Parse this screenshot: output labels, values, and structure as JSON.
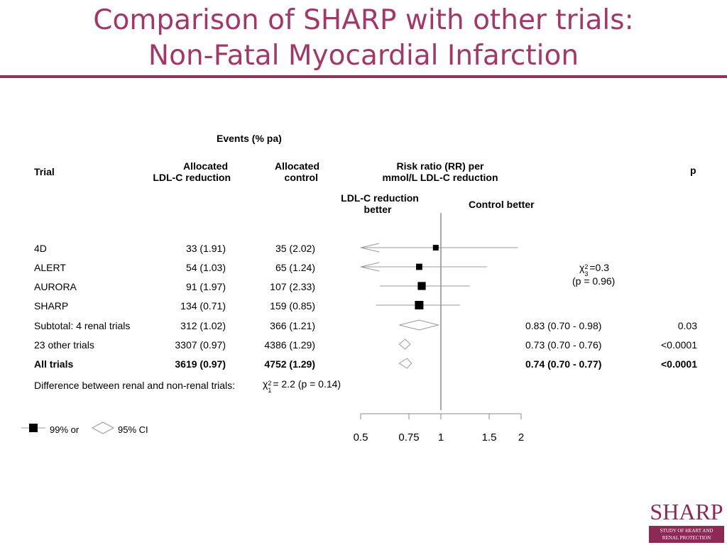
{
  "title": {
    "line1": "Comparison of SHARP with other trials:",
    "line2": "Non-Fatal Myocardial Infarction"
  },
  "headers": {
    "events": "Events (% pa)",
    "trial": "Trial",
    "allocated_ldl_1": "Allocated",
    "allocated_ldl_2": "LDL-C reduction",
    "allocated_ctrl_1": "Allocated",
    "allocated_ctrl_2": "control",
    "rr_1": "Risk ratio (RR) per",
    "rr_2": "mmol/L LDL-C reduction",
    "p": "p",
    "ldl_better_1": "LDL-C reduction",
    "ldl_better_2": "better",
    "control_better": "Control better"
  },
  "heterogeneity": {
    "chi": "χ",
    "sup": "2",
    "sub": "3",
    "value": "=0.3",
    "p": "(p = 0.96)"
  },
  "difference": {
    "label": "Difference between renal and non-renal trials:",
    "chi": "χ",
    "sup": "2",
    "sub": "1",
    "value": "= 2.2 (p = 0.14)"
  },
  "legend": {
    "square": "99% or",
    "diamond": "95% CI"
  },
  "logo": {
    "word": "SHARP",
    "sub1": "STUDY OF HEART AND",
    "sub2": "RENAL PROTECTION"
  },
  "chart_data": {
    "type": "forest",
    "x_ticks": [
      "0.5",
      "0.75",
      "1",
      "1.5",
      "2"
    ],
    "xlim": [
      0.5,
      2
    ],
    "reference": 1,
    "rows": [
      {
        "trial": "4D",
        "ldl": "33 (1.91)",
        "ctrl": "35 (2.02)",
        "rr": 0.96,
        "lo": 0.38,
        "hi": 1.95,
        "arrow_left": true,
        "marker": "square",
        "size": 0.25,
        "estimate": "",
        "p": "",
        "bold": false
      },
      {
        "trial": "ALERT",
        "ldl": "54 (1.03)",
        "ctrl": "65 (1.24)",
        "rr": 0.83,
        "lo": 0.38,
        "hi": 1.48,
        "arrow_left": true,
        "marker": "square",
        "size": 0.35,
        "estimate": "",
        "p": "",
        "bold": false
      },
      {
        "trial": "AURORA",
        "ldl": "91 (1.97)",
        "ctrl": "107 (2.33)",
        "rr": 0.85,
        "lo": 0.6,
        "hi": 1.3,
        "arrow_left": false,
        "marker": "square",
        "size": 0.65,
        "estimate": "",
        "p": "",
        "bold": false
      },
      {
        "trial": "SHARP",
        "ldl": "134 (0.71)",
        "ctrl": "159 (0.85)",
        "rr": 0.83,
        "lo": 0.58,
        "hi": 1.2,
        "arrow_left": false,
        "marker": "square",
        "size": 0.75,
        "estimate": "",
        "p": "",
        "bold": false
      },
      {
        "trial": "Subtotal: 4 renal trials",
        "ldl": "312 (1.02)",
        "ctrl": "366 (1.21)",
        "rr": 0.83,
        "lo": 0.7,
        "hi": 0.98,
        "marker": "diamond",
        "estimate": "0.83 (0.70 - 0.98)",
        "p": "0.03",
        "bold": false
      },
      {
        "trial": "23 other trials",
        "ldl": "3307 (0.97)",
        "ctrl": "4386 (1.29)",
        "rr": 0.73,
        "lo": 0.7,
        "hi": 0.76,
        "marker": "diamond",
        "estimate": "0.73 (0.70 - 0.76)",
        "p": "<0.0001",
        "bold": false
      },
      {
        "trial": "All trials",
        "ldl": "3619 (0.97)",
        "ctrl": "4752 (1.29)",
        "rr": 0.74,
        "lo": 0.7,
        "hi": 0.77,
        "marker": "diamond",
        "estimate": "0.74 (0.70 - 0.77)",
        "p": "<0.0001",
        "bold": true
      }
    ]
  }
}
